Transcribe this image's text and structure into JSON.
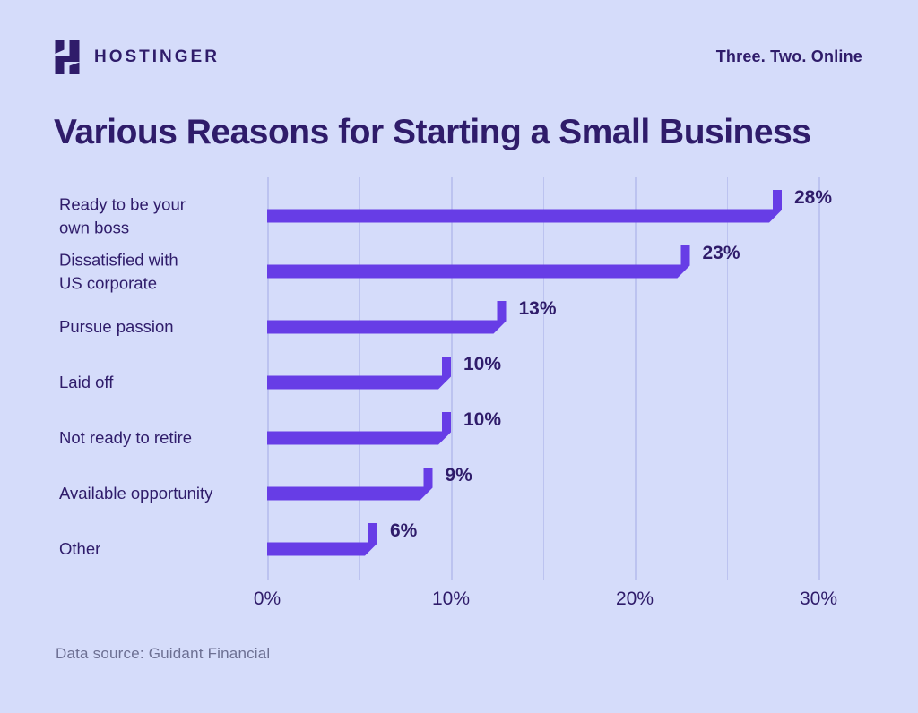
{
  "header": {
    "brand": "HOSTINGER",
    "tagline": "Three. Two. Online"
  },
  "title": "Various Reasons for Starting a Small Business",
  "footer": {
    "source": "Data source: Guidant Financial"
  },
  "colors": {
    "background": "#D5DCFA",
    "bar": "#673DE6",
    "text_dark": "#2F1C6A",
    "gridline": "#BCC3F0",
    "source_text": "#6D7093"
  },
  "chart_data": {
    "type": "bar",
    "orientation": "horizontal",
    "title": "Various Reasons for Starting a Small Business",
    "categories": [
      "Ready to be your own boss",
      "Dissatisfied with US corporate",
      "Pursue passion",
      "Laid off",
      "Not ready to retire",
      "Available opportunity",
      "Other"
    ],
    "category_display": [
      "Ready to be your\nown boss",
      "Dissatisfied with\nUS corporate",
      "Pursue passion",
      "Laid off",
      "Not ready to retire",
      "Available opportunity",
      "Other"
    ],
    "values": [
      28,
      23,
      13,
      10,
      10,
      9,
      6
    ],
    "value_labels": [
      "28%",
      "23%",
      "13%",
      "10%",
      "10%",
      "9%",
      "6%"
    ],
    "xlabel": "",
    "ylabel": "",
    "xlim": [
      0,
      30
    ],
    "x_ticks": [
      "0%",
      "10%",
      "20%",
      "30%"
    ],
    "x_tick_values": [
      0,
      10,
      20,
      30
    ],
    "gridlines_every": 5,
    "grid": "vertical",
    "legend": "none"
  }
}
